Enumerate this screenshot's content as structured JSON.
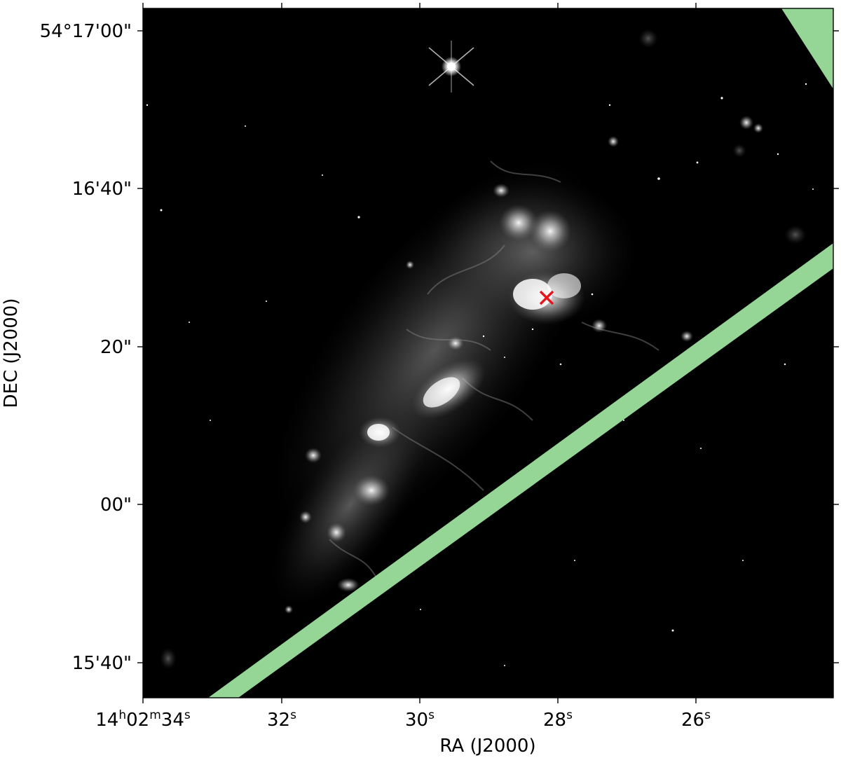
{
  "figure": {
    "xlabel": "RA (J2000)",
    "ylabel": "DEC (J2000)",
    "x_ticks": [
      {
        "label": "14h02m34s",
        "parts": [
          "14",
          "h",
          "02",
          "m",
          "34",
          "s"
        ]
      },
      {
        "label": "32s",
        "parts": [
          "32",
          "s"
        ]
      },
      {
        "label": "30s",
        "parts": [
          "30",
          "s"
        ]
      },
      {
        "label": "28s",
        "parts": [
          "28",
          "s"
        ]
      },
      {
        "label": "26s",
        "parts": [
          "26",
          "s"
        ]
      }
    ],
    "y_ticks": [
      {
        "label": "54°17'00\""
      },
      {
        "label": "16'40\""
      },
      {
        "label": "20\""
      },
      {
        "label": "00\""
      },
      {
        "label": "15'40\""
      }
    ],
    "marker_symbol": "×",
    "colors": {
      "background": "#000000",
      "slit_overlay": "#95d595",
      "marker": "#e8141b",
      "frame": "#000000"
    }
  }
}
